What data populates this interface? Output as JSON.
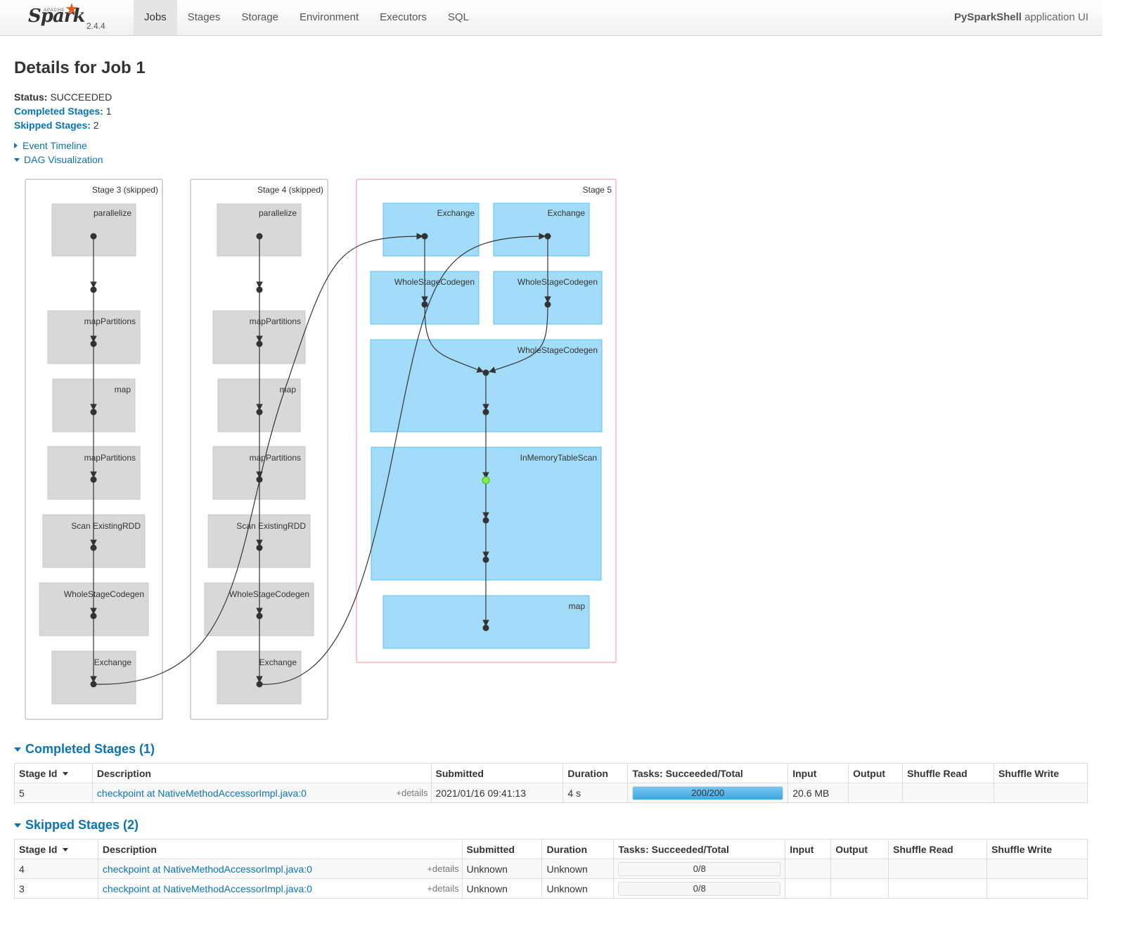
{
  "nav": {
    "brand_apache": "APACHE",
    "brand_name": "Spark",
    "version": "2.4.4",
    "items": [
      {
        "label": "Jobs",
        "active": true
      },
      {
        "label": "Stages",
        "active": false
      },
      {
        "label": "Storage",
        "active": false
      },
      {
        "label": "Environment",
        "active": false
      },
      {
        "label": "Executors",
        "active": false
      },
      {
        "label": "SQL",
        "active": false
      }
    ],
    "app_name_bold": "PySparkShell",
    "app_name_rest": " application UI"
  },
  "header": {
    "title": "Details for Job 1",
    "status_label": "Status:",
    "status_value": " SUCCEEDED",
    "completed_label": "Completed Stages:",
    "completed_value": " 1",
    "skipped_label": "Skipped Stages:",
    "skipped_value": " 2",
    "event_timeline": "Event Timeline",
    "dag_visualization": "DAG Visualization"
  },
  "dag": {
    "stages": [
      {
        "label": "Stage 3 (skipped)",
        "nodes": [
          "parallelize",
          "mapPartitions",
          "map",
          "mapPartitions",
          "Scan ExistingRDD",
          "WholeStageCodegen",
          "Exchange"
        ]
      },
      {
        "label": "Stage 4 (skipped)",
        "nodes": [
          "parallelize",
          "mapPartitions",
          "map",
          "mapPartitions",
          "Scan ExistingRDD",
          "WholeStageCodegen",
          "Exchange"
        ]
      },
      {
        "label": "Stage 5",
        "nodes": [
          "Exchange",
          "Exchange",
          "WholeStageCodegen",
          "WholeStageCodegen",
          "WholeStageCodegen",
          "InMemoryTableScan",
          "map"
        ]
      }
    ]
  },
  "completed": {
    "title": "Completed Stages (1)",
    "headers": [
      "Stage Id",
      "Description",
      "Submitted",
      "Duration",
      "Tasks: Succeeded/Total",
      "Input",
      "Output",
      "Shuffle Read",
      "Shuffle Write"
    ],
    "rows": [
      {
        "id": "5",
        "description": "checkpoint at NativeMethodAccessorImpl.java:0",
        "details": "+details",
        "submitted": "2021/01/16 09:41:13",
        "duration": "4 s",
        "tasks": "200/200",
        "tasks_fraction": 1.0,
        "input": "20.6 MB",
        "output": "",
        "shuffle_read": "",
        "shuffle_write": ""
      }
    ]
  },
  "skipped": {
    "title": "Skipped Stages (2)",
    "headers": [
      "Stage Id",
      "Description",
      "Submitted",
      "Duration",
      "Tasks: Succeeded/Total",
      "Input",
      "Output",
      "Shuffle Read",
      "Shuffle Write"
    ],
    "rows": [
      {
        "id": "4",
        "description": "checkpoint at NativeMethodAccessorImpl.java:0",
        "details": "+details",
        "submitted": "Unknown",
        "duration": "Unknown",
        "tasks": "0/8",
        "tasks_fraction": 0.0
      },
      {
        "id": "3",
        "description": "checkpoint at NativeMethodAccessorImpl.java:0",
        "details": "+details",
        "submitted": "Unknown",
        "duration": "Unknown",
        "tasks": "0/8",
        "tasks_fraction": 0.0
      }
    ]
  },
  "colors": {
    "accent": "#0a74b8",
    "skipped_node": "#d8d8d8",
    "active_node": "#a2dcf8",
    "active_stage_border": "#f5a3ac",
    "cached_point": "#7ef040"
  }
}
